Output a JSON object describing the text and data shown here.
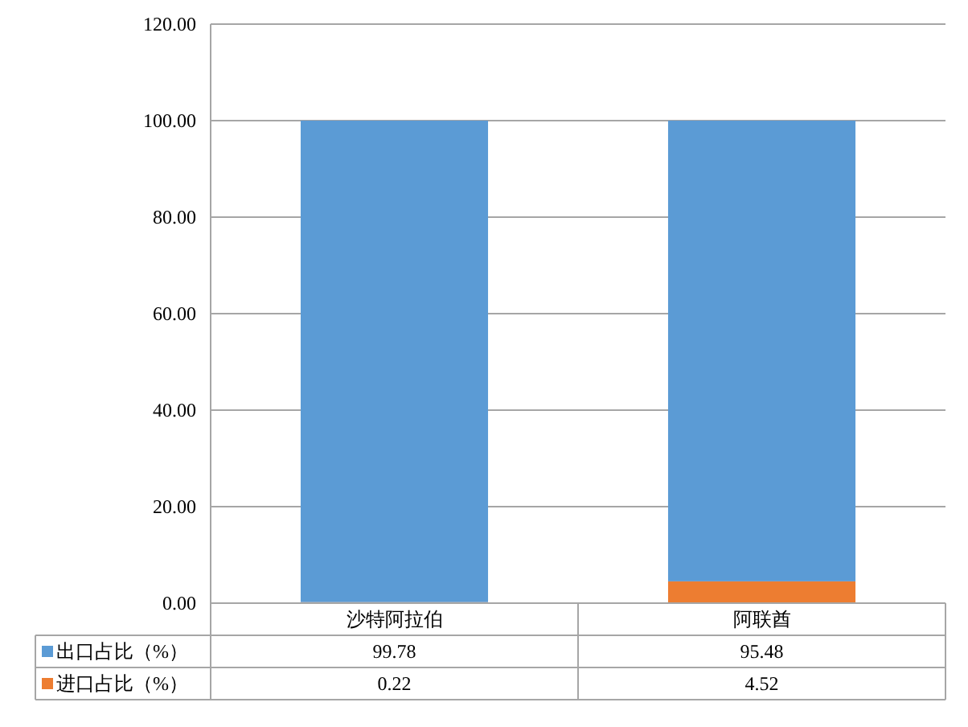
{
  "chart_data": {
    "type": "bar",
    "stacked": true,
    "categories": [
      "沙特阿拉伯",
      "阿联酋"
    ],
    "series": [
      {
        "name": "进口占比（%）",
        "color": "#ed7d31",
        "values": [
          0.22,
          4.52
        ]
      },
      {
        "name": "出口占比（%）",
        "color": "#5b9bd5",
        "values": [
          99.78,
          95.48
        ]
      }
    ],
    "ylim": [
      0,
      120
    ],
    "yticks": [
      {
        "value": 0,
        "label": "0.00"
      },
      {
        "value": 20,
        "label": "20.00"
      },
      {
        "value": 40,
        "label": "40.00"
      },
      {
        "value": 60,
        "label": "60.00"
      },
      {
        "value": 80,
        "label": "80.00"
      },
      {
        "value": 100,
        "label": "100.00"
      },
      {
        "value": 120,
        "label": "120.00"
      }
    ],
    "grid": "y",
    "data_labels": true,
    "legend": "bottom"
  }
}
